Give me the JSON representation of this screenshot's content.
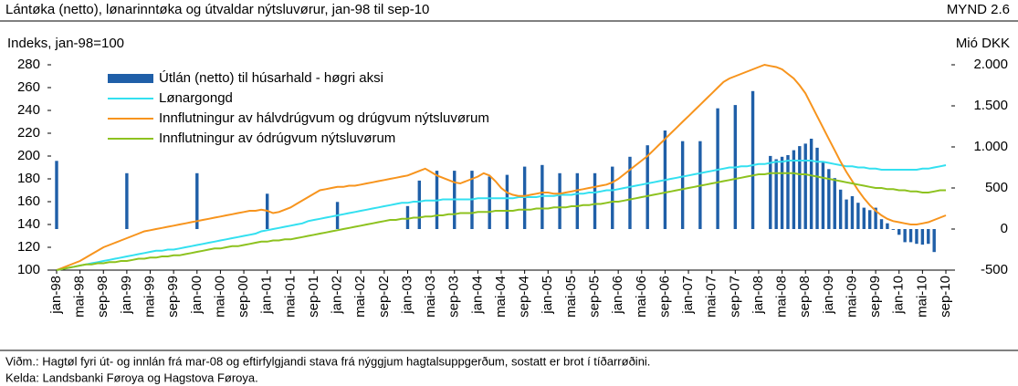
{
  "chart_data": {
    "type": "combo",
    "title": "Lántøka (netto), lønarinntøka og útvaldar nýtsluvørur, jan-98 til sep-10",
    "figure_label": "MYND 2.6",
    "y_label": "Indeks, jan-98=100",
    "y2_label": "Mió DKK",
    "ylim": [
      100,
      280
    ],
    "yticks": [
      100,
      120,
      140,
      160,
      180,
      200,
      220,
      240,
      260,
      280
    ],
    "y2lim": [
      -500,
      2000
    ],
    "y2ticks": [
      -500,
      0,
      500,
      {
        "value": 1000,
        "label": "1.000"
      },
      {
        "value": 1500,
        "label": "1.500"
      },
      {
        "value": 2000,
        "label": "2.000"
      }
    ],
    "categories": [
      "jan-98",
      null,
      null,
      null,
      "mai-98",
      null,
      null,
      null,
      "sep-98",
      null,
      null,
      null,
      "jan-99",
      null,
      null,
      null,
      "mai-99",
      null,
      null,
      null,
      "sep-99",
      null,
      null,
      null,
      "jan-00",
      null,
      null,
      null,
      "mai-00",
      null,
      null,
      null,
      "sep-00",
      null,
      null,
      null,
      "jan-01",
      null,
      null,
      null,
      "mai-01",
      null,
      null,
      null,
      "sep-01",
      null,
      null,
      null,
      "jan-02",
      null,
      null,
      null,
      "mai-02",
      null,
      null,
      null,
      "sep-02",
      null,
      null,
      null,
      "jan-03",
      null,
      null,
      null,
      "mai-03",
      null,
      null,
      null,
      "sep-03",
      null,
      null,
      null,
      "jan-04",
      null,
      null,
      null,
      "mai-04",
      null,
      null,
      null,
      "sep-04",
      null,
      null,
      null,
      "jan-05",
      null,
      null,
      null,
      "mai-05",
      null,
      null,
      null,
      "sep-05",
      null,
      null,
      null,
      "jan-06",
      null,
      null,
      null,
      "mai-06",
      null,
      null,
      null,
      "sep-06",
      null,
      null,
      null,
      "jan-07",
      null,
      null,
      null,
      "mai-07",
      null,
      null,
      null,
      "sep-07",
      null,
      null,
      null,
      "jan-08",
      null,
      null,
      null,
      "mai-08",
      null,
      null,
      null,
      "sep-08",
      null,
      null,
      null,
      "jan-09",
      null,
      null,
      null,
      "mai-09",
      null,
      null,
      null,
      "sep-09",
      null,
      null,
      null,
      "jan-10",
      null,
      null,
      null,
      "mai-10",
      null,
      null,
      null,
      "sep-10"
    ],
    "series": [
      {
        "name": "Útlán (netto) til húsarhald - høgri aksi",
        "type": "bar",
        "axis": "y2",
        "color": "#1f5fa8",
        "values": [
          830,
          null,
          null,
          null,
          null,
          null,
          null,
          null,
          null,
          null,
          null,
          null,
          680,
          null,
          null,
          null,
          null,
          null,
          null,
          null,
          null,
          null,
          null,
          null,
          680,
          null,
          null,
          null,
          null,
          null,
          null,
          null,
          null,
          null,
          null,
          null,
          430,
          null,
          null,
          null,
          null,
          null,
          null,
          null,
          null,
          null,
          null,
          null,
          330,
          null,
          null,
          null,
          null,
          null,
          null,
          null,
          null,
          null,
          null,
          null,
          280,
          null,
          590,
          null,
          null,
          710,
          null,
          null,
          710,
          null,
          null,
          710,
          null,
          null,
          640,
          null,
          null,
          660,
          null,
          null,
          760,
          null,
          null,
          780,
          null,
          null,
          680,
          null,
          null,
          680,
          null,
          null,
          680,
          null,
          null,
          760,
          null,
          null,
          880,
          null,
          null,
          1020,
          null,
          null,
          1200,
          null,
          null,
          1070,
          null,
          null,
          1070,
          null,
          null,
          1470,
          null,
          null,
          1510,
          null,
          null,
          1680,
          null,
          null,
          890,
          850,
          880,
          900,
          960,
          1010,
          1040,
          1100,
          990,
          810,
          730,
          620,
          480,
          360,
          400,
          320,
          260,
          230,
          260,
          120,
          70,
          -10,
          -70,
          -160,
          -160,
          -180,
          -190,
          -180,
          -280,
          null,
          null
        ]
      },
      {
        "name": "Lønargongd",
        "type": "line",
        "color": "#33e0f0",
        "values": [
          100,
          101,
          102,
          103,
          104,
          105,
          106,
          107,
          108,
          109,
          110,
          111,
          112,
          113,
          114,
          115,
          116,
          117,
          117,
          118,
          118,
          119,
          120,
          121,
          122,
          123,
          124,
          125,
          126,
          127,
          128,
          129,
          130,
          131,
          132,
          134,
          135,
          136,
          137,
          138,
          139,
          140,
          141,
          143,
          144,
          145,
          146,
          147,
          148,
          149,
          150,
          151,
          152,
          153,
          154,
          155,
          156,
          157,
          158,
          159,
          159,
          160,
          160,
          161,
          161,
          161,
          162,
          162,
          162,
          162,
          162,
          162,
          163,
          163,
          163,
          163,
          163,
          163,
          163,
          164,
          164,
          164,
          164,
          165,
          165,
          165,
          166,
          166,
          166,
          167,
          167,
          168,
          168,
          169,
          170,
          170,
          171,
          172,
          173,
          174,
          175,
          176,
          177,
          178,
          179,
          180,
          181,
          182,
          183,
          184,
          185,
          186,
          187,
          188,
          189,
          190,
          190,
          191,
          191,
          192,
          193,
          193,
          194,
          195,
          195,
          196,
          196,
          196,
          196,
          196,
          195,
          195,
          194,
          193,
          192,
          191,
          191,
          190,
          190,
          189,
          189,
          188,
          188,
          188,
          188,
          188,
          188,
          188,
          189,
          189,
          190,
          191,
          192
        ]
      },
      {
        "name": "Innflutningur av hálvdrúgvum og drúgvum nýtsluvørum",
        "type": "line",
        "color": "#f7941d",
        "values": [
          100,
          102,
          104,
          106,
          108,
          111,
          114,
          117,
          120,
          122,
          124,
          126,
          128,
          130,
          132,
          134,
          135,
          136,
          137,
          138,
          139,
          140,
          141,
          142,
          143,
          144,
          145,
          146,
          147,
          148,
          149,
          150,
          151,
          152,
          152,
          153,
          152,
          150,
          151,
          153,
          155,
          158,
          161,
          164,
          167,
          170,
          171,
          172,
          173,
          173,
          174,
          174,
          175,
          176,
          177,
          178,
          179,
          180,
          181,
          182,
          183,
          185,
          187,
          189,
          186,
          183,
          181,
          179,
          177,
          176,
          178,
          180,
          182,
          185,
          183,
          178,
          172,
          168,
          166,
          165,
          165,
          166,
          167,
          168,
          168,
          167,
          167,
          168,
          169,
          170,
          171,
          172,
          173,
          174,
          175,
          177,
          180,
          184,
          188,
          192,
          196,
          200,
          205,
          210,
          215,
          220,
          225,
          230,
          235,
          240,
          245,
          250,
          255,
          260,
          265,
          268,
          270,
          272,
          274,
          276,
          278,
          280,
          279,
          278,
          276,
          272,
          268,
          262,
          255,
          245,
          235,
          225,
          215,
          205,
          195,
          186,
          178,
          170,
          163,
          157,
          152,
          148,
          145,
          143,
          142,
          141,
          140,
          140,
          141,
          142,
          144,
          146,
          148
        ]
      },
      {
        "name": "Innflutningur av ódrúgvum nýtsluvørum",
        "type": "line",
        "color": "#8dc21f",
        "values": [
          100,
          101,
          102,
          103,
          104,
          105,
          105,
          106,
          106,
          107,
          107,
          108,
          108,
          109,
          110,
          110,
          111,
          111,
          112,
          112,
          113,
          113,
          114,
          115,
          116,
          117,
          118,
          119,
          119,
          120,
          121,
          121,
          122,
          123,
          124,
          125,
          125,
          126,
          126,
          127,
          127,
          128,
          129,
          130,
          131,
          132,
          133,
          134,
          135,
          136,
          137,
          138,
          139,
          140,
          141,
          142,
          143,
          144,
          144,
          145,
          145,
          146,
          146,
          147,
          147,
          148,
          148,
          149,
          149,
          150,
          150,
          150,
          151,
          151,
          151,
          152,
          152,
          152,
          152,
          153,
          153,
          153,
          154,
          154,
          154,
          155,
          155,
          155,
          156,
          156,
          157,
          157,
          158,
          158,
          159,
          160,
          160,
          161,
          162,
          163,
          164,
          165,
          166,
          167,
          168,
          169,
          170,
          171,
          172,
          173,
          174,
          175,
          176,
          177,
          178,
          179,
          180,
          181,
          182,
          183,
          184,
          184,
          185,
          185,
          185,
          185,
          185,
          184,
          184,
          183,
          182,
          181,
          180,
          179,
          178,
          177,
          176,
          175,
          174,
          173,
          172,
          172,
          171,
          171,
          170,
          170,
          169,
          169,
          168,
          168,
          169,
          170,
          170
        ]
      }
    ],
    "notes": [
      "Viðm.: Hagtøl fyri út- og innlán frá mar-08 og eftirfylgjandi stava frá nýggjum hagtalsuppgerðum, sostatt er brot í tíðarrøðini.",
      "Kelda: Landsbanki Føroya og Hagstova Føroya."
    ]
  }
}
